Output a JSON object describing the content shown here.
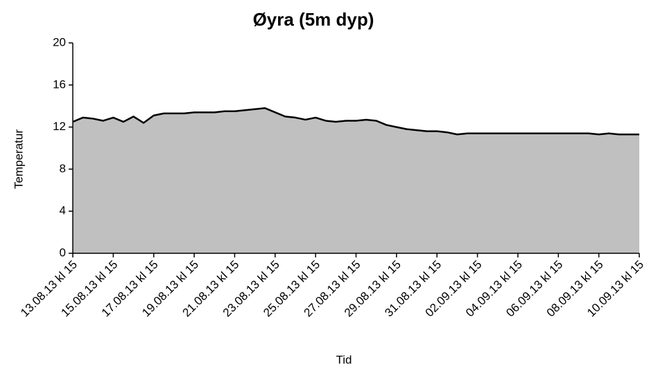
{
  "chart_data": {
    "type": "area",
    "title": "Øyra (5m dyp)",
    "x_label": "Tid",
    "y_label": "Temperatur",
    "categories": [
      "13.08.13 kl 15",
      null,
      null,
      null,
      "15.08.13 kl 15",
      null,
      null,
      null,
      "17.08.13 kl 15",
      null,
      null,
      null,
      "19.08.13 kl 15",
      null,
      null,
      null,
      "21.08.13 kl 15",
      null,
      null,
      null,
      "23.08.13 kl 15",
      null,
      null,
      null,
      "25.08.13 kl 15",
      null,
      null,
      null,
      "27.08.13 kl 15",
      null,
      null,
      null,
      "29.08.13 kl 15",
      null,
      null,
      null,
      "31.08.13 kl 15",
      null,
      null,
      null,
      "02.09.13 kl 15",
      null,
      null,
      null,
      "04.09.13 kl 15",
      null,
      null,
      null,
      "06.09.13 kl 15",
      null,
      null,
      null,
      "08.09.13 kl 15",
      null,
      null,
      null,
      "10.09.13 kl 15"
    ],
    "values": [
      12.5,
      12.9,
      12.8,
      12.6,
      12.9,
      12.5,
      13.0,
      12.4,
      13.1,
      13.3,
      13.3,
      13.3,
      13.4,
      13.4,
      13.4,
      13.5,
      13.5,
      13.6,
      13.7,
      13.8,
      13.4,
      13.0,
      12.9,
      12.7,
      12.9,
      12.6,
      12.5,
      12.6,
      12.6,
      12.7,
      12.6,
      12.2,
      12.0,
      11.8,
      11.7,
      11.6,
      11.6,
      11.5,
      11.3,
      11.4,
      11.4,
      11.4,
      11.4,
      11.4,
      11.4,
      11.4,
      11.4,
      11.4,
      11.4,
      11.4,
      11.4,
      11.4,
      11.3,
      11.4,
      11.3,
      11.3,
      11.3
    ],
    "color": "#c0c0c0",
    "line_color": "#000000",
    "ylim": [
      0,
      20
    ],
    "yticks": [
      0,
      4,
      8,
      12,
      16,
      20
    ]
  }
}
